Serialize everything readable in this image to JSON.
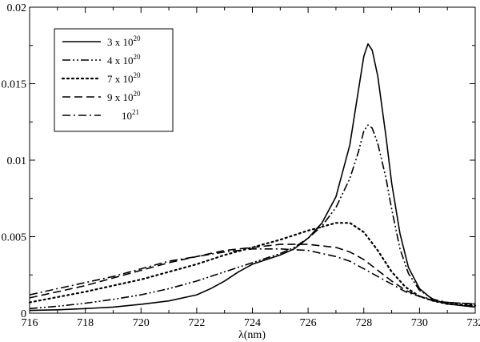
{
  "chart_data": {
    "type": "line",
    "title": "",
    "xlabel": "λ(nm)",
    "ylabel": "",
    "xlim": [
      716,
      732
    ],
    "ylim": [
      0,
      0.02
    ],
    "x_ticks": [
      716,
      718,
      720,
      722,
      724,
      726,
      728,
      730,
      732
    ],
    "x_tick_labels": [
      "716",
      "718",
      "720",
      "722",
      "724",
      "726",
      "728",
      "730",
      "732"
    ],
    "y_ticks": [
      0,
      0.005,
      0.01,
      0.015,
      0.02
    ],
    "y_tick_labels": [
      "0",
      "0.005",
      "0.01",
      "0.015",
      "0.02"
    ],
    "grid": false,
    "legend_position": "top-left",
    "series": [
      {
        "name": "3 x 10^20",
        "label_base": "3 x 10",
        "label_exp": "20",
        "dash": "solid",
        "points": [
          [
            716,
            0.00018
          ],
          [
            717,
            0.00022
          ],
          [
            718,
            0.0003
          ],
          [
            719,
            0.0004
          ],
          [
            720,
            0.00058
          ],
          [
            721,
            0.0008
          ],
          [
            722,
            0.0012
          ],
          [
            722.5,
            0.0016
          ],
          [
            723,
            0.0021
          ],
          [
            723.5,
            0.0027
          ],
          [
            724,
            0.0032
          ],
          [
            724.5,
            0.0035
          ],
          [
            725,
            0.0038
          ],
          [
            725.5,
            0.0042
          ],
          [
            726,
            0.0049
          ],
          [
            726.5,
            0.0059
          ],
          [
            727,
            0.0076
          ],
          [
            727.5,
            0.011
          ],
          [
            727.8,
            0.0145
          ],
          [
            728,
            0.0168
          ],
          [
            728.15,
            0.0176
          ],
          [
            728.3,
            0.0172
          ],
          [
            728.5,
            0.0155
          ],
          [
            728.8,
            0.0115
          ],
          [
            729,
            0.0085
          ],
          [
            729.3,
            0.0052
          ],
          [
            729.6,
            0.003
          ],
          [
            730,
            0.0016
          ],
          [
            730.5,
            0.00085
          ],
          [
            731,
            0.0006
          ],
          [
            732,
            0.0004
          ]
        ]
      },
      {
        "name": "4 x 10^20",
        "label_base": "4 x 10",
        "label_exp": "20",
        "dash": "dash-dot-dot",
        "points": [
          [
            716,
            0.0003
          ],
          [
            717,
            0.00045
          ],
          [
            718,
            0.00065
          ],
          [
            719,
            0.0009
          ],
          [
            720,
            0.0012
          ],
          [
            721,
            0.0016
          ],
          [
            722,
            0.0021
          ],
          [
            723,
            0.0027
          ],
          [
            724,
            0.0033
          ],
          [
            724.5,
            0.0036
          ],
          [
            725,
            0.0039
          ],
          [
            725.5,
            0.0043
          ],
          [
            726,
            0.0049
          ],
          [
            726.5,
            0.0057
          ],
          [
            727,
            0.0069
          ],
          [
            727.5,
            0.0088
          ],
          [
            727.8,
            0.0105
          ],
          [
            728,
            0.0119
          ],
          [
            728.15,
            0.0123
          ],
          [
            728.3,
            0.0121
          ],
          [
            728.5,
            0.0111
          ],
          [
            728.8,
            0.0088
          ],
          [
            729,
            0.0068
          ],
          [
            729.3,
            0.0042
          ],
          [
            729.6,
            0.0026
          ],
          [
            730,
            0.0015
          ],
          [
            730.5,
            0.0009
          ],
          [
            731,
            0.0006
          ],
          [
            732,
            0.00045
          ]
        ]
      },
      {
        "name": "7 x 10^20",
        "label_base": "7 x 10",
        "label_exp": "20",
        "dash": "dotted",
        "points": [
          [
            716,
            0.0007
          ],
          [
            717,
            0.00105
          ],
          [
            718,
            0.0014
          ],
          [
            719,
            0.0018
          ],
          [
            720,
            0.0022
          ],
          [
            721,
            0.0027
          ],
          [
            722,
            0.0032
          ],
          [
            723,
            0.0038
          ],
          [
            724,
            0.0043
          ],
          [
            725,
            0.0048
          ],
          [
            726,
            0.0054
          ],
          [
            727,
            0.0059
          ],
          [
            727.5,
            0.0059
          ],
          [
            728,
            0.0053
          ],
          [
            728.5,
            0.0041
          ],
          [
            729,
            0.0027
          ],
          [
            729.5,
            0.0017
          ],
          [
            730,
            0.0011
          ],
          [
            730.5,
            0.0008
          ],
          [
            731,
            0.0006
          ],
          [
            732,
            0.0005
          ]
        ]
      },
      {
        "name": "9 x 10^20",
        "label_base": "9 x 10",
        "label_exp": "20",
        "dash": "dashed",
        "points": [
          [
            716,
            0.001
          ],
          [
            717,
            0.0014
          ],
          [
            718,
            0.0018
          ],
          [
            719,
            0.0023
          ],
          [
            720,
            0.0028
          ],
          [
            721,
            0.0033
          ],
          [
            722,
            0.0037
          ],
          [
            723,
            0.0041
          ],
          [
            724,
            0.0043
          ],
          [
            725,
            0.0045
          ],
          [
            726,
            0.0045
          ],
          [
            727,
            0.0043
          ],
          [
            727.5,
            0.004
          ],
          [
            728,
            0.0035
          ],
          [
            728.5,
            0.0028
          ],
          [
            729,
            0.0021
          ],
          [
            729.5,
            0.0015
          ],
          [
            730,
            0.0011
          ],
          [
            730.5,
            0.0008
          ],
          [
            731,
            0.0007
          ],
          [
            732,
            0.0006
          ]
        ]
      },
      {
        "name": "10^21",
        "label_base": "10",
        "label_exp": "21",
        "dash": "dash-dot",
        "points": [
          [
            716,
            0.0012
          ],
          [
            717,
            0.0016
          ],
          [
            718,
            0.002
          ],
          [
            719,
            0.0024
          ],
          [
            720,
            0.0029
          ],
          [
            721,
            0.0034
          ],
          [
            722,
            0.0037
          ],
          [
            723,
            0.004
          ],
          [
            724,
            0.0042
          ],
          [
            725,
            0.0042
          ],
          [
            726,
            0.0041
          ],
          [
            727,
            0.0037
          ],
          [
            727.5,
            0.0034
          ],
          [
            728,
            0.0029
          ],
          [
            728.5,
            0.0024
          ],
          [
            729,
            0.0019
          ],
          [
            729.5,
            0.0014
          ],
          [
            730,
            0.0011
          ],
          [
            730.5,
            0.0009
          ],
          [
            731,
            0.0007
          ],
          [
            732,
            0.0006
          ]
        ]
      }
    ]
  }
}
